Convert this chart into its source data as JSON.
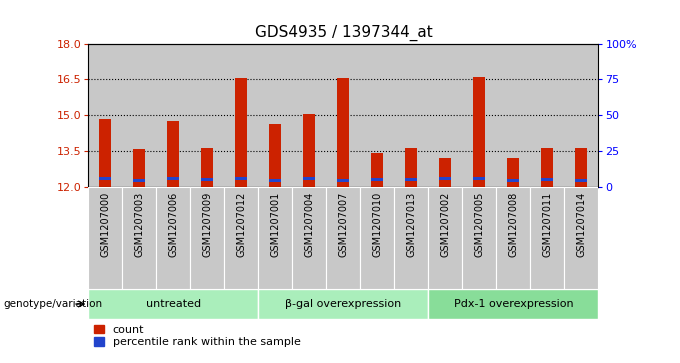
{
  "title": "GDS4935 / 1397344_at",
  "samples": [
    "GSM1207000",
    "GSM1207003",
    "GSM1207006",
    "GSM1207009",
    "GSM1207012",
    "GSM1207001",
    "GSM1207004",
    "GSM1207007",
    "GSM1207010",
    "GSM1207013",
    "GSM1207002",
    "GSM1207005",
    "GSM1207008",
    "GSM1207011",
    "GSM1207014"
  ],
  "count_values": [
    14.85,
    13.6,
    14.75,
    13.65,
    16.55,
    14.65,
    15.05,
    16.55,
    13.4,
    13.65,
    13.2,
    16.6,
    13.2,
    13.65,
    13.65
  ],
  "percentile_values": [
    12.28,
    12.2,
    12.28,
    12.23,
    12.28,
    12.2,
    12.28,
    12.2,
    12.23,
    12.23,
    12.28,
    12.28,
    12.2,
    12.23,
    12.2
  ],
  "bar_bottom": 12.0,
  "ymin": 12.0,
  "ymax": 18.0,
  "yticks_left": [
    12,
    13.5,
    15,
    16.5,
    18
  ],
  "yticks_right": [
    0,
    25,
    50,
    75,
    100
  ],
  "groups": [
    {
      "label": "untreated",
      "indices": [
        0,
        4
      ]
    },
    {
      "label": "β-gal overexpression",
      "indices": [
        5,
        9
      ]
    },
    {
      "label": "Pdx-1 overexpression",
      "indices": [
        10,
        14
      ]
    }
  ],
  "group_label_prefix": "genotype/variation",
  "bar_color_red": "#cc2200",
  "bar_color_blue": "#2244cc",
  "bar_width": 0.35,
  "group_bg_color": "#aaeebb",
  "group_bg_color2": "#88dd99",
  "col_bg_color": "#c8c8c8",
  "legend_count": "count",
  "legend_percentile": "percentile rank within the sample",
  "title_fontsize": 11,
  "tick_fontsize": 8,
  "label_fontsize": 7
}
